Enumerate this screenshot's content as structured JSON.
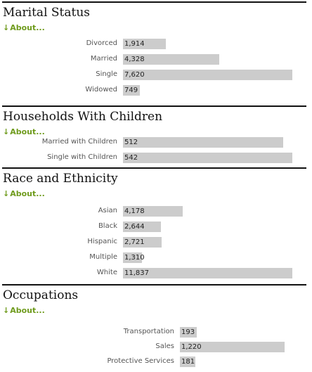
{
  "about_label": "About...",
  "about_arrow": "↓",
  "colors": {
    "bar": "#cccccc",
    "rule": "#111111",
    "link": "#6f9b1d"
  },
  "chart_data": [
    {
      "type": "bar",
      "title": "Marital Status",
      "categories": [
        "Divorced",
        "Married",
        "Single",
        "Widowed"
      ],
      "values": [
        1914,
        4328,
        7620,
        749
      ],
      "value_labels": [
        "1,914",
        "4,328",
        "7,620",
        "749"
      ],
      "xlim": [
        0,
        7620
      ]
    },
    {
      "type": "bar",
      "title": "Households With Children",
      "categories": [
        "Married with Children",
        "Single with Children"
      ],
      "values": [
        512,
        542
      ],
      "value_labels": [
        "512",
        "542"
      ],
      "xlim": [
        0,
        542
      ]
    },
    {
      "type": "bar",
      "title": "Race and Ethnicity",
      "categories": [
        "Asian",
        "Black",
        "Hispanic",
        "Multiple",
        "White"
      ],
      "values": [
        4178,
        2644,
        2721,
        1310,
        11837
      ],
      "value_labels": [
        "4,178",
        "2,644",
        "2,721",
        "1,310",
        "11,837"
      ],
      "xlim": [
        0,
        11837
      ]
    },
    {
      "type": "bar",
      "title": "Occupations",
      "categories": [
        "Transportation",
        "Sales",
        "Protective Services"
      ],
      "values": [
        193,
        1220,
        181
      ],
      "value_labels": [
        "193",
        "1,220",
        "181"
      ],
      "xlim": [
        0,
        1500
      ]
    }
  ]
}
